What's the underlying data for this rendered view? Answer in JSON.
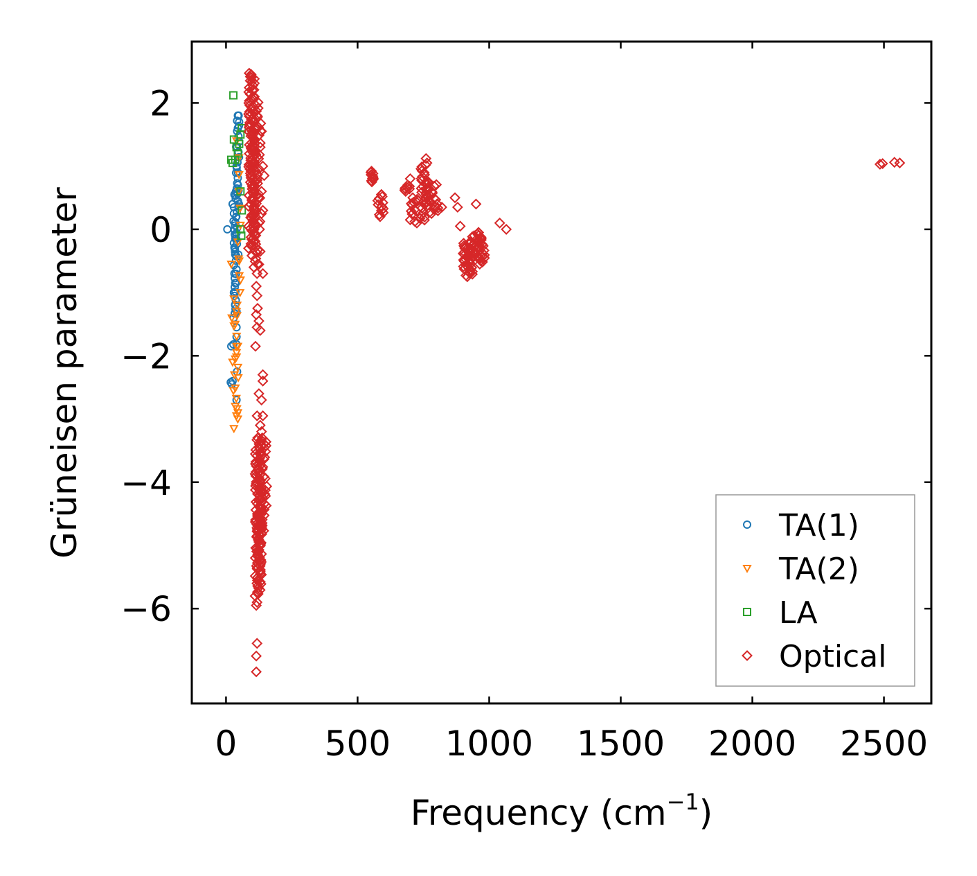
{
  "chart_data": {
    "type": "scatter",
    "xlabel": "Frequency (cm",
    "xlabel_exponent": "−1",
    "xlabel_suffix": ")",
    "ylabel": "Grüneisen parameter",
    "xlim": [
      -130,
      2680
    ],
    "ylim": [
      -7.5,
      2.97
    ],
    "xticks": [
      0,
      500,
      1000,
      1500,
      2000,
      2500
    ],
    "yticks": [
      2,
      0,
      -2,
      -4,
      -6
    ],
    "xtick_labels": [
      "0",
      "500",
      "1000",
      "1500",
      "2000",
      "2500"
    ],
    "ytick_labels": [
      "2",
      "0",
      "−2",
      "−4",
      "−6"
    ],
    "legend_position": "lower-right",
    "grid": false,
    "series": [
      {
        "name": "TA(1)",
        "marker": "circle",
        "color": "#1f77b4",
        "points": [
          [
            5,
            0.0
          ],
          [
            18,
            -2.42
          ],
          [
            22,
            -2.45
          ],
          [
            25,
            -2.4
          ],
          [
            20,
            -1.85
          ],
          [
            28,
            -1.82
          ],
          [
            40,
            -1.55
          ],
          [
            40,
            -1.7
          ],
          [
            40,
            -1.82
          ],
          [
            42,
            -2.25
          ],
          [
            40,
            -2.7
          ],
          [
            25,
            0.4
          ],
          [
            30,
            0.35
          ],
          [
            32,
            0.55
          ],
          [
            30,
            0.25
          ],
          [
            38,
            0.6
          ],
          [
            40,
            1.0
          ],
          [
            42,
            1.3
          ],
          [
            45,
            1.6
          ],
          [
            48,
            1.8
          ],
          [
            50,
            1.7
          ],
          [
            45,
            0.9
          ],
          [
            35,
            -0.1
          ],
          [
            35,
            -0.4
          ],
          [
            32,
            -0.7
          ],
          [
            35,
            -0.85
          ],
          [
            30,
            -1.0
          ],
          [
            35,
            -1.2
          ],
          [
            40,
            -1.3
          ]
        ],
        "segments": [
          {
            "x": [
              28,
              40
            ],
            "y": [
              0.2,
              -1.4
            ],
            "n": 24
          },
          {
            "x": [
              33,
              48
            ],
            "y": [
              -0.4,
              0.7
            ],
            "n": 14
          },
          {
            "x": [
              36,
              50
            ],
            "y": [
              0.4,
              1.8
            ],
            "n": 18
          }
        ]
      },
      {
        "name": "TA(2)",
        "marker": "triangle-down",
        "color": "#ff7f0e",
        "points": [
          [
            30,
            -3.15
          ],
          [
            40,
            -2.95
          ],
          [
            35,
            -2.8
          ],
          [
            45,
            -2.9
          ],
          [
            28,
            -2.55
          ],
          [
            32,
            -2.3
          ],
          [
            35,
            -2.05
          ],
          [
            40,
            -1.95
          ],
          [
            45,
            -1.85
          ],
          [
            25,
            -2.1
          ],
          [
            22,
            -1.4
          ],
          [
            30,
            -1.1
          ],
          [
            50,
            -0.5
          ],
          [
            55,
            -0.8
          ],
          [
            20,
            -0.55
          ],
          [
            35,
            -1.5
          ],
          [
            40,
            -1.3
          ]
        ],
        "segments": [
          {
            "x": [
              30,
              50
            ],
            "y": [
              -3.0,
              -1.2
            ],
            "n": 12
          },
          {
            "x": [
              40,
              58
            ],
            "y": [
              -1.0,
              1.4
            ],
            "n": 10
          }
        ]
      },
      {
        "name": "LA",
        "marker": "square",
        "color": "#2ca02c",
        "points": [
          [
            28,
            2.12
          ],
          [
            30,
            1.42
          ],
          [
            20,
            1.1
          ],
          [
            25,
            1.05
          ],
          [
            35,
            1.1
          ],
          [
            40,
            1.3
          ],
          [
            50,
            1.35
          ],
          [
            55,
            1.5
          ],
          [
            45,
            1.2
          ],
          [
            60,
            1.6
          ],
          [
            55,
            0.6
          ],
          [
            60,
            0.3
          ],
          [
            55,
            0.0
          ],
          [
            58,
            -0.1
          ]
        ]
      },
      {
        "name": "Optical",
        "marker": "diamond",
        "color": "#d62728",
        "points": [
          [
            88,
            2.47
          ],
          [
            92,
            2.35
          ],
          [
            96,
            2.4
          ],
          [
            100,
            2.2
          ],
          [
            95,
            2.05
          ],
          [
            110,
            1.85
          ],
          [
            118,
            1.6
          ],
          [
            135,
            1.55
          ],
          [
            130,
            1.3
          ],
          [
            140,
            1.0
          ],
          [
            145,
            0.85
          ],
          [
            135,
            0.6
          ],
          [
            140,
            0.3
          ],
          [
            125,
            0.1
          ],
          [
            130,
            -0.35
          ],
          [
            120,
            -0.55
          ],
          [
            118,
            -0.7
          ],
          [
            140,
            -0.7
          ],
          [
            115,
            -0.9
          ],
          [
            118,
            -1.05
          ],
          [
            120,
            -1.25
          ],
          [
            115,
            -1.35
          ],
          [
            118,
            -1.55
          ],
          [
            112,
            -1.85
          ],
          [
            125,
            -1.45
          ],
          [
            130,
            -1.6
          ],
          [
            140,
            -2.3
          ],
          [
            140,
            -2.4
          ],
          [
            125,
            -2.6
          ],
          [
            135,
            -2.7
          ],
          [
            118,
            -2.95
          ],
          [
            130,
            -3.1
          ],
          [
            135,
            -3.2
          ],
          [
            140,
            -2.95
          ],
          [
            118,
            -5.9
          ],
          [
            115,
            -5.95
          ],
          [
            120,
            -5.75
          ],
          [
            118,
            -6.55
          ],
          [
            115,
            -6.75
          ],
          [
            115,
            -7.0
          ],
          [
            560,
            0.8
          ],
          [
            590,
            0.55
          ],
          [
            590,
            0.35
          ],
          [
            680,
            0.65
          ],
          [
            700,
            0.8
          ],
          [
            760,
            1.12
          ],
          [
            720,
            0.45
          ],
          [
            700,
            0.15
          ],
          [
            820,
            0.35
          ],
          [
            870,
            0.5
          ],
          [
            880,
            0.35
          ],
          [
            890,
            0.05
          ],
          [
            920,
            -0.6
          ],
          [
            950,
            0.4
          ],
          [
            960,
            -0.05
          ],
          [
            1040,
            0.1
          ],
          [
            1065,
            0.0
          ],
          [
            2485,
            1.03
          ],
          [
            2495,
            1.04
          ],
          [
            2540,
            1.06
          ],
          [
            2560,
            1.05
          ]
        ],
        "segments": [
          {
            "x": [
              85,
              110
            ],
            "y": [
              2.45,
              -0.3
            ],
            "n": 80
          },
          {
            "x": [
              95,
              125
            ],
            "y": [
              2.1,
              -0.6
            ],
            "n": 60
          },
          {
            "x": [
              105,
              135
            ],
            "y": [
              1.8,
              0.0
            ],
            "n": 30
          },
          {
            "x": [
              110,
              135
            ],
            "y": [
              -3.3,
              -5.8
            ],
            "n": 80
          },
          {
            "x": [
              125,
              155
            ],
            "y": [
              -3.3,
              -4.8
            ],
            "n": 50
          },
          {
            "x": [
              115,
              140
            ],
            "y": [
              -4.5,
              -5.6
            ],
            "n": 25
          },
          {
            "x": [
              550,
              560
            ],
            "y": [
              0.75,
              0.92
            ],
            "n": 10
          },
          {
            "x": [
              575,
              600
            ],
            "y": [
              0.2,
              0.55
            ],
            "n": 12
          },
          {
            "x": [
              670,
              700
            ],
            "y": [
              0.6,
              0.7
            ],
            "n": 6
          },
          {
            "x": [
              700,
              760
            ],
            "y": [
              0.1,
              0.5
            ],
            "n": 18
          },
          {
            "x": [
              740,
              770
            ],
            "y": [
              0.4,
              1.05
            ],
            "n": 22
          },
          {
            "x": [
              760,
              810
            ],
            "y": [
              0.25,
              0.75
            ],
            "n": 24
          },
          {
            "x": [
              900,
              940
            ],
            "y": [
              -0.75,
              -0.2
            ],
            "n": 28
          },
          {
            "x": [
              920,
              975
            ],
            "y": [
              -0.1,
              -0.55
            ],
            "n": 28
          },
          {
            "x": [
              955,
              985
            ],
            "y": [
              -0.5,
              -0.05
            ],
            "n": 20
          }
        ]
      }
    ]
  }
}
